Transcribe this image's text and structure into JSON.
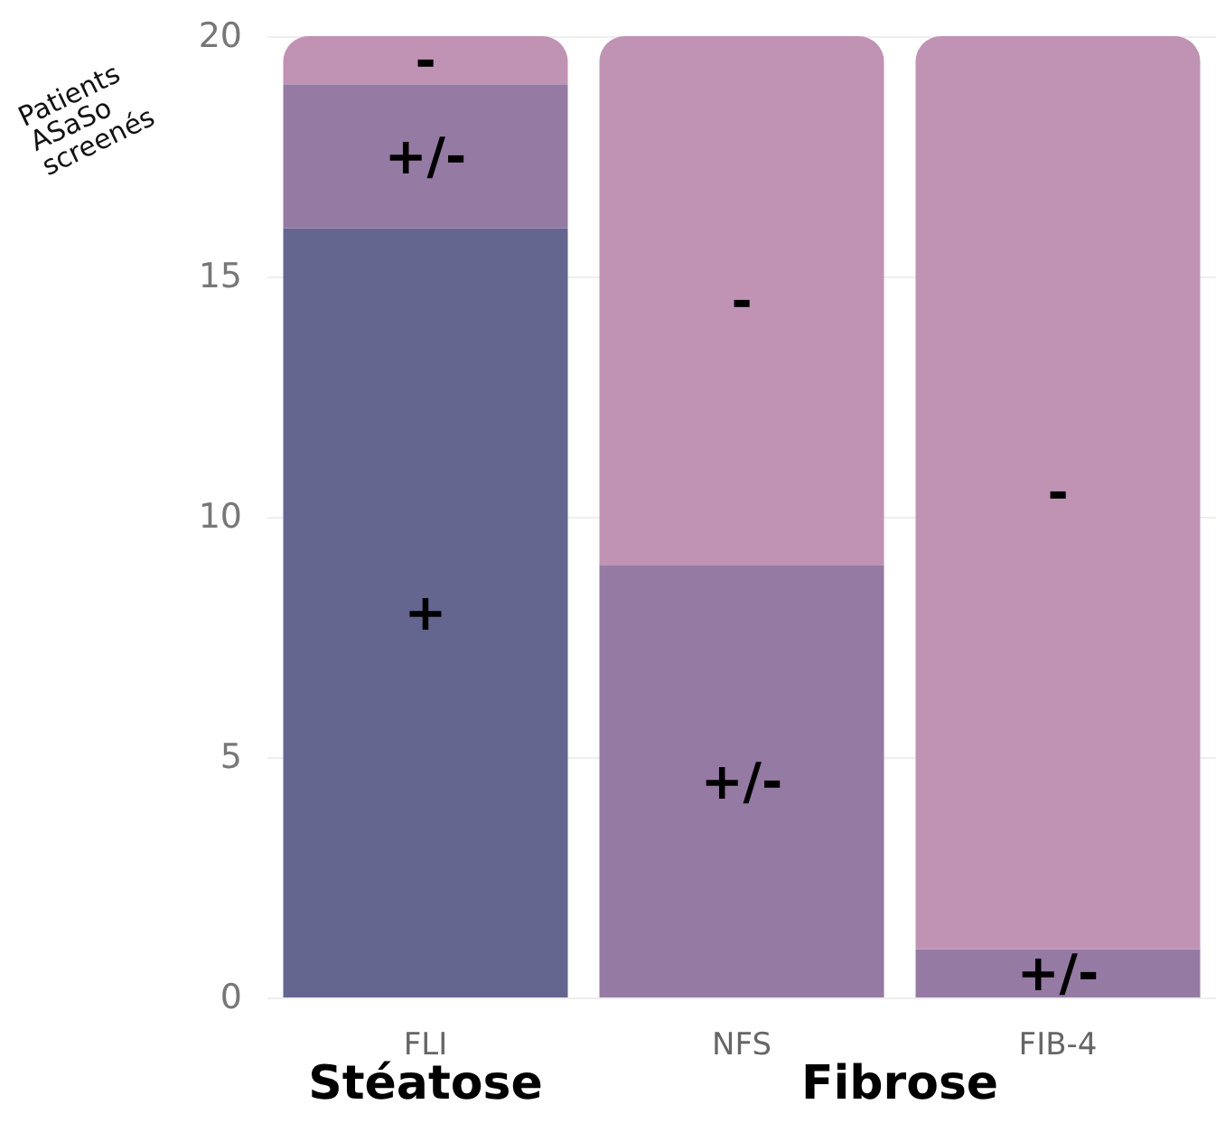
{
  "chart_data": {
    "type": "bar",
    "stacked": true,
    "ylabel": "Patients ASaSo screenés",
    "categories": [
      "FLI",
      "NFS",
      "FIB-4"
    ],
    "series": [
      {
        "name": "+",
        "color": "#64668f",
        "values": [
          16,
          0,
          0
        ]
      },
      {
        "name": "+/-",
        "color": "#957aa3",
        "values": [
          3,
          9,
          1
        ]
      },
      {
        "name": "-",
        "color": "#c093b4",
        "values": [
          1,
          11,
          19
        ]
      }
    ],
    "ylim": [
      0,
      20
    ],
    "yticks": [
      0,
      5,
      10,
      15,
      20
    ],
    "grid": "y",
    "legend": false,
    "annotations": [
      "Stéatose",
      "Fibrose"
    ]
  }
}
